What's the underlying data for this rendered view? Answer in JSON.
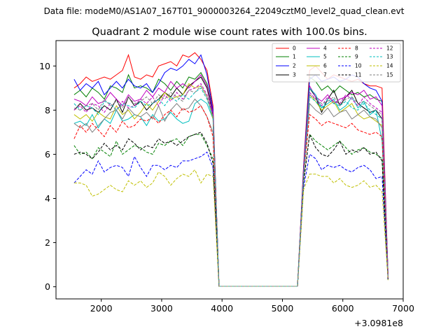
{
  "figure": {
    "suptitle": "Data file: modeM0/AS1A07_167T01_9000003264_22049cztM0_level2_quad_clean.evt"
  },
  "chart_data": {
    "type": "line",
    "title": "Quadrant 2 module wise count rates with 100.0s bins.",
    "xlabel": "",
    "ylabel": "",
    "x_offset_label": "+3.0981e8",
    "xlim": [
      1250,
      7000
    ],
    "ylim": [
      -0.55,
      11.15
    ],
    "xticks": [
      2000,
      3000,
      4000,
      5000,
      6000,
      7000
    ],
    "xtick_labels": [
      "2000",
      "3000",
      "4000",
      "5000",
      "6000",
      "7000"
    ],
    "yticks": [
      0,
      2,
      4,
      6,
      8,
      10
    ],
    "ytick_labels": [
      "0",
      "2",
      "4",
      "6",
      "8",
      "10"
    ],
    "legend_position": "top-right",
    "grid": false,
    "x": [
      1550,
      1650,
      1750,
      1850,
      1950,
      2050,
      2150,
      2250,
      2350,
      2450,
      2550,
      2650,
      2750,
      2850,
      2950,
      3050,
      3150,
      3250,
      3350,
      3450,
      3550,
      3650,
      3750,
      3850,
      3950,
      4050,
      4150,
      4250,
      4350,
      4450,
      4550,
      4650,
      4750,
      4850,
      4950,
      5050,
      5150,
      5250,
      5350,
      5450,
      5550,
      5650,
      5750,
      5850,
      5950,
      6050,
      6150,
      6250,
      6350,
      6450,
      6550,
      6650,
      6750
    ],
    "series": [
      {
        "name": "0",
        "color": "#ff0000",
        "dash": "solid",
        "values": [
          9.0,
          9.2,
          9.5,
          9.3,
          9.4,
          9.5,
          9.4,
          9.6,
          9.8,
          10.5,
          9.5,
          9.4,
          9.6,
          9.5,
          10.0,
          10.1,
          10.2,
          10.0,
          10.5,
          10.4,
          10.6,
          10.3,
          9.8,
          8.2,
          0.02,
          0.02,
          0.02,
          0.02,
          0.02,
          0.02,
          0.02,
          0.02,
          0.02,
          0.02,
          0.02,
          0.02,
          0.02,
          0.02,
          5.5,
          9.8,
          10.0,
          9.7,
          9.4,
          9.6,
          9.5,
          9.4,
          9.3,
          9.4,
          9.2,
          9.1,
          9.1,
          9.0,
          0.5
        ]
      },
      {
        "name": "1",
        "color": "#008000",
        "dash": "solid",
        "values": [
          8.7,
          8.9,
          8.6,
          9.0,
          8.8,
          8.5,
          9.1,
          9.0,
          8.8,
          9.6,
          9.0,
          9.1,
          9.0,
          8.8,
          9.4,
          9.2,
          8.9,
          9.3,
          9.0,
          9.5,
          9.4,
          9.7,
          9.2,
          8.0,
          0.02,
          0.02,
          0.02,
          0.02,
          0.02,
          0.02,
          0.02,
          0.02,
          0.02,
          0.02,
          0.02,
          0.02,
          0.02,
          0.02,
          5.3,
          9.5,
          9.3,
          8.9,
          9.1,
          8.8,
          9.1,
          8.9,
          8.7,
          8.8,
          8.6,
          8.7,
          8.5,
          8.4,
          0.5
        ]
      },
      {
        "name": "2",
        "color": "#0000ff",
        "dash": "solid",
        "values": [
          9.4,
          8.9,
          9.2,
          9.0,
          9.3,
          8.7,
          9.0,
          9.3,
          9.0,
          9.4,
          9.1,
          9.0,
          9.2,
          8.8,
          9.2,
          9.7,
          9.9,
          9.8,
          10.0,
          10.3,
          10.1,
          10.5,
          9.6,
          8.0,
          0.02,
          0.02,
          0.02,
          0.02,
          0.02,
          0.02,
          0.02,
          0.02,
          0.02,
          0.02,
          0.02,
          0.02,
          0.02,
          0.02,
          5.4,
          9.4,
          9.6,
          9.3,
          9.4,
          9.5,
          9.3,
          9.4,
          9.6,
          9.5,
          9.2,
          9.0,
          8.9,
          8.4,
          0.5
        ]
      },
      {
        "name": "3",
        "color": "#000000",
        "dash": "solid",
        "values": [
          8.0,
          8.3,
          8.0,
          8.1,
          7.9,
          8.2,
          8.0,
          8.5,
          7.9,
          8.6,
          8.2,
          8.4,
          8.0,
          8.3,
          8.5,
          8.8,
          8.6,
          9.0,
          8.7,
          9.1,
          9.3,
          9.5,
          9.0,
          7.8,
          0.02,
          0.02,
          0.02,
          0.02,
          0.02,
          0.02,
          0.02,
          0.02,
          0.02,
          0.02,
          0.02,
          0.02,
          0.02,
          0.02,
          5.2,
          9.0,
          8.6,
          7.9,
          8.5,
          8.9,
          8.2,
          8.6,
          8.9,
          8.3,
          8.1,
          7.9,
          8.0,
          7.6,
          0.4
        ]
      },
      {
        "name": "4",
        "color": "#bf00bf",
        "dash": "solid",
        "values": [
          8.5,
          8.4,
          8.2,
          8.6,
          8.3,
          8.4,
          8.8,
          8.5,
          8.2,
          8.7,
          8.4,
          8.5,
          8.9,
          8.6,
          9.0,
          8.8,
          9.3,
          9.0,
          9.2,
          9.0,
          9.3,
          9.6,
          9.1,
          7.9,
          0.02,
          0.02,
          0.02,
          0.02,
          0.02,
          0.02,
          0.02,
          0.02,
          0.02,
          0.02,
          0.02,
          0.02,
          0.02,
          0.02,
          5.3,
          9.1,
          8.6,
          8.4,
          8.7,
          8.3,
          8.5,
          8.6,
          8.8,
          8.7,
          8.9,
          8.5,
          8.6,
          8.2,
          0.5
        ]
      },
      {
        "name": "5",
        "color": "#00bfbf",
        "dash": "solid",
        "values": [
          7.4,
          7.5,
          7.3,
          7.8,
          7.2,
          7.6,
          7.4,
          8.0,
          7.5,
          7.6,
          7.8,
          7.7,
          7.3,
          7.8,
          7.5,
          7.6,
          7.9,
          7.6,
          7.4,
          7.5,
          8.3,
          8.5,
          8.3,
          7.6,
          0.02,
          0.02,
          0.02,
          0.02,
          0.02,
          0.02,
          0.02,
          0.02,
          0.02,
          0.02,
          0.02,
          0.02,
          0.02,
          0.02,
          5.1,
          9.0,
          8.7,
          8.1,
          8.3,
          8.5,
          8.0,
          8.2,
          8.6,
          8.1,
          8.4,
          7.8,
          8.0,
          6.6,
          0.4
        ]
      },
      {
        "name": "6",
        "color": "#bfbf00",
        "dash": "solid",
        "values": [
          7.8,
          7.6,
          7.8,
          7.5,
          7.9,
          7.7,
          7.6,
          8.2,
          7.8,
          8.0,
          7.6,
          7.9,
          8.3,
          8.0,
          8.4,
          8.8,
          8.5,
          8.6,
          8.7,
          9.2,
          9.0,
          9.1,
          8.6,
          7.6,
          0.02,
          0.02,
          0.02,
          0.02,
          0.02,
          0.02,
          0.02,
          0.02,
          0.02,
          0.02,
          0.02,
          0.02,
          0.02,
          0.02,
          5.1,
          8.7,
          8.4,
          8.0,
          8.2,
          8.4,
          7.9,
          8.1,
          8.3,
          7.8,
          7.6,
          7.7,
          7.5,
          7.3,
          0.4
        ]
      },
      {
        "name": "7",
        "color": "#808080",
        "dash": "solid",
        "values": [
          7.4,
          7.2,
          7.4,
          7.0,
          7.3,
          7.6,
          7.9,
          8.0,
          7.6,
          8.1,
          7.8,
          7.7,
          7.9,
          7.6,
          8.2,
          7.5,
          8.0,
          8.3,
          8.0,
          8.1,
          8.5,
          8.2,
          7.7,
          7.0,
          0.02,
          0.02,
          0.02,
          0.02,
          0.02,
          0.02,
          0.02,
          0.02,
          0.02,
          0.02,
          0.02,
          0.02,
          0.02,
          0.02,
          5.0,
          8.3,
          8.0,
          7.8,
          8.1,
          7.7,
          7.9,
          8.0,
          7.6,
          7.8,
          8.0,
          7.7,
          7.6,
          7.2,
          0.4
        ]
      },
      {
        "name": "8",
        "color": "#ff0000",
        "dash": "dashed",
        "values": [
          6.7,
          7.3,
          7.0,
          7.4,
          7.1,
          6.8,
          7.3,
          7.0,
          7.5,
          7.2,
          7.3,
          7.6,
          7.5,
          7.7,
          7.4,
          7.8,
          8.0,
          7.7,
          8.1,
          7.9,
          8.0,
          8.2,
          7.7,
          6.8,
          0.02,
          0.02,
          0.02,
          0.02,
          0.02,
          0.02,
          0.02,
          0.02,
          0.02,
          0.02,
          0.02,
          0.02,
          0.02,
          0.02,
          5.0,
          7.8,
          7.6,
          7.3,
          7.5,
          7.4,
          7.3,
          7.2,
          7.4,
          7.1,
          7.0,
          6.9,
          7.0,
          6.8,
          0.4
        ]
      },
      {
        "name": "9",
        "color": "#008000",
        "dash": "dashed",
        "values": [
          6.4,
          6.0,
          6.1,
          5.8,
          6.3,
          6.1,
          5.9,
          6.6,
          6.0,
          6.2,
          6.4,
          6.3,
          6.1,
          6.0,
          6.5,
          6.4,
          6.6,
          6.7,
          6.4,
          6.8,
          6.9,
          6.9,
          6.4,
          5.8,
          0.02,
          0.02,
          0.02,
          0.02,
          0.02,
          0.02,
          0.02,
          0.02,
          0.02,
          0.02,
          0.02,
          0.02,
          0.02,
          0.02,
          4.8,
          6.9,
          6.6,
          6.4,
          6.2,
          6.4,
          6.6,
          6.3,
          6.0,
          6.2,
          6.3,
          6.1,
          6.0,
          5.8,
          0.3
        ]
      },
      {
        "name": "10",
        "color": "#0000ff",
        "dash": "dashed",
        "values": [
          4.7,
          5.0,
          5.3,
          5.1,
          5.7,
          5.2,
          5.4,
          5.5,
          5.4,
          5.0,
          5.9,
          5.4,
          5.0,
          5.5,
          5.5,
          5.3,
          5.5,
          5.4,
          5.7,
          5.7,
          5.8,
          5.9,
          6.1,
          5.4,
          0.02,
          0.02,
          0.02,
          0.02,
          0.02,
          0.02,
          0.02,
          0.02,
          0.02,
          0.02,
          0.02,
          0.02,
          0.02,
          0.02,
          4.5,
          6.0,
          5.8,
          5.3,
          5.5,
          5.4,
          5.5,
          5.3,
          5.2,
          5.4,
          5.5,
          5.3,
          4.9,
          5.0,
          0.3
        ]
      },
      {
        "name": "11",
        "color": "#000000",
        "dash": "dashed",
        "values": [
          6.0,
          6.1,
          6.0,
          5.8,
          6.1,
          6.5,
          6.2,
          6.4,
          6.2,
          6.7,
          6.5,
          6.2,
          6.4,
          6.3,
          6.7,
          6.5,
          6.6,
          6.4,
          6.6,
          6.8,
          6.9,
          7.0,
          6.5,
          5.6,
          0.02,
          0.02,
          0.02,
          0.02,
          0.02,
          0.02,
          0.02,
          0.02,
          0.02,
          0.02,
          0.02,
          0.02,
          0.02,
          0.02,
          4.7,
          6.9,
          6.3,
          6.0,
          5.9,
          6.2,
          6.6,
          6.0,
          6.2,
          6.1,
          6.3,
          6.0,
          6.1,
          5.7,
          0.3
        ]
      },
      {
        "name": "12",
        "color": "#bf00bf",
        "dash": "dashed",
        "values": [
          8.0,
          8.2,
          7.9,
          8.3,
          8.2,
          7.9,
          8.3,
          8.0,
          8.4,
          8.1,
          8.2,
          8.5,
          8.3,
          8.6,
          8.2,
          8.7,
          8.4,
          8.8,
          8.5,
          8.9,
          9.0,
          9.2,
          8.7,
          7.8,
          0.02,
          0.02,
          0.02,
          0.02,
          0.02,
          0.02,
          0.02,
          0.02,
          0.02,
          0.02,
          0.02,
          0.02,
          0.02,
          0.02,
          5.1,
          8.8,
          8.5,
          8.2,
          8.6,
          8.4,
          8.3,
          8.7,
          8.5,
          8.2,
          8.6,
          8.3,
          8.1,
          7.9,
          0.4
        ]
      },
      {
        "name": "13",
        "color": "#00bfbf",
        "dash": "dashed",
        "values": [
          8.3,
          8.0,
          8.2,
          8.1,
          7.8,
          8.4,
          8.3,
          8.0,
          8.3,
          8.2,
          8.1,
          8.4,
          8.2,
          8.3,
          8.5,
          8.2,
          8.6,
          8.4,
          8.7,
          8.5,
          8.8,
          9.0,
          8.5,
          7.7,
          0.02,
          0.02,
          0.02,
          0.02,
          0.02,
          0.02,
          0.02,
          0.02,
          0.02,
          0.02,
          0.02,
          0.02,
          0.02,
          0.02,
          5.0,
          8.6,
          8.4,
          8.1,
          8.5,
          8.3,
          8.2,
          8.4,
          8.1,
          8.0,
          8.3,
          8.0,
          7.8,
          7.6,
          0.4
        ]
      },
      {
        "name": "14",
        "color": "#bfbf00",
        "dash": "dashed",
        "values": [
          4.7,
          4.7,
          4.6,
          4.1,
          4.2,
          4.4,
          4.6,
          4.4,
          4.3,
          4.8,
          4.6,
          4.8,
          4.5,
          4.7,
          5.2,
          5.0,
          4.6,
          4.9,
          5.1,
          5.0,
          5.3,
          4.7,
          5.1,
          5.0,
          0.02,
          0.02,
          0.02,
          0.02,
          0.02,
          0.02,
          0.02,
          0.02,
          0.02,
          0.02,
          0.02,
          0.02,
          0.02,
          0.02,
          4.4,
          5.1,
          5.1,
          5.0,
          5.0,
          4.7,
          4.9,
          4.6,
          4.5,
          4.6,
          4.8,
          4.5,
          4.6,
          4.3,
          0.3
        ]
      },
      {
        "name": "15",
        "color": "#808080",
        "dash": "dashed",
        "values": [
          8.1,
          8.0,
          8.2,
          8.3,
          8.0,
          8.5,
          8.2,
          8.4,
          8.1,
          8.6,
          8.3,
          8.4,
          8.6,
          8.3,
          8.7,
          8.5,
          8.8,
          8.6,
          8.4,
          8.9,
          8.8,
          9.1,
          8.6,
          7.7,
          0.02,
          0.02,
          0.02,
          0.02,
          0.02,
          0.02,
          0.02,
          0.02,
          0.02,
          0.02,
          0.02,
          0.02,
          0.02,
          0.02,
          5.0,
          8.7,
          8.5,
          8.3,
          8.4,
          8.6,
          8.2,
          8.5,
          8.6,
          8.3,
          8.4,
          8.2,
          8.0,
          7.8,
          0.4
        ]
      }
    ]
  }
}
